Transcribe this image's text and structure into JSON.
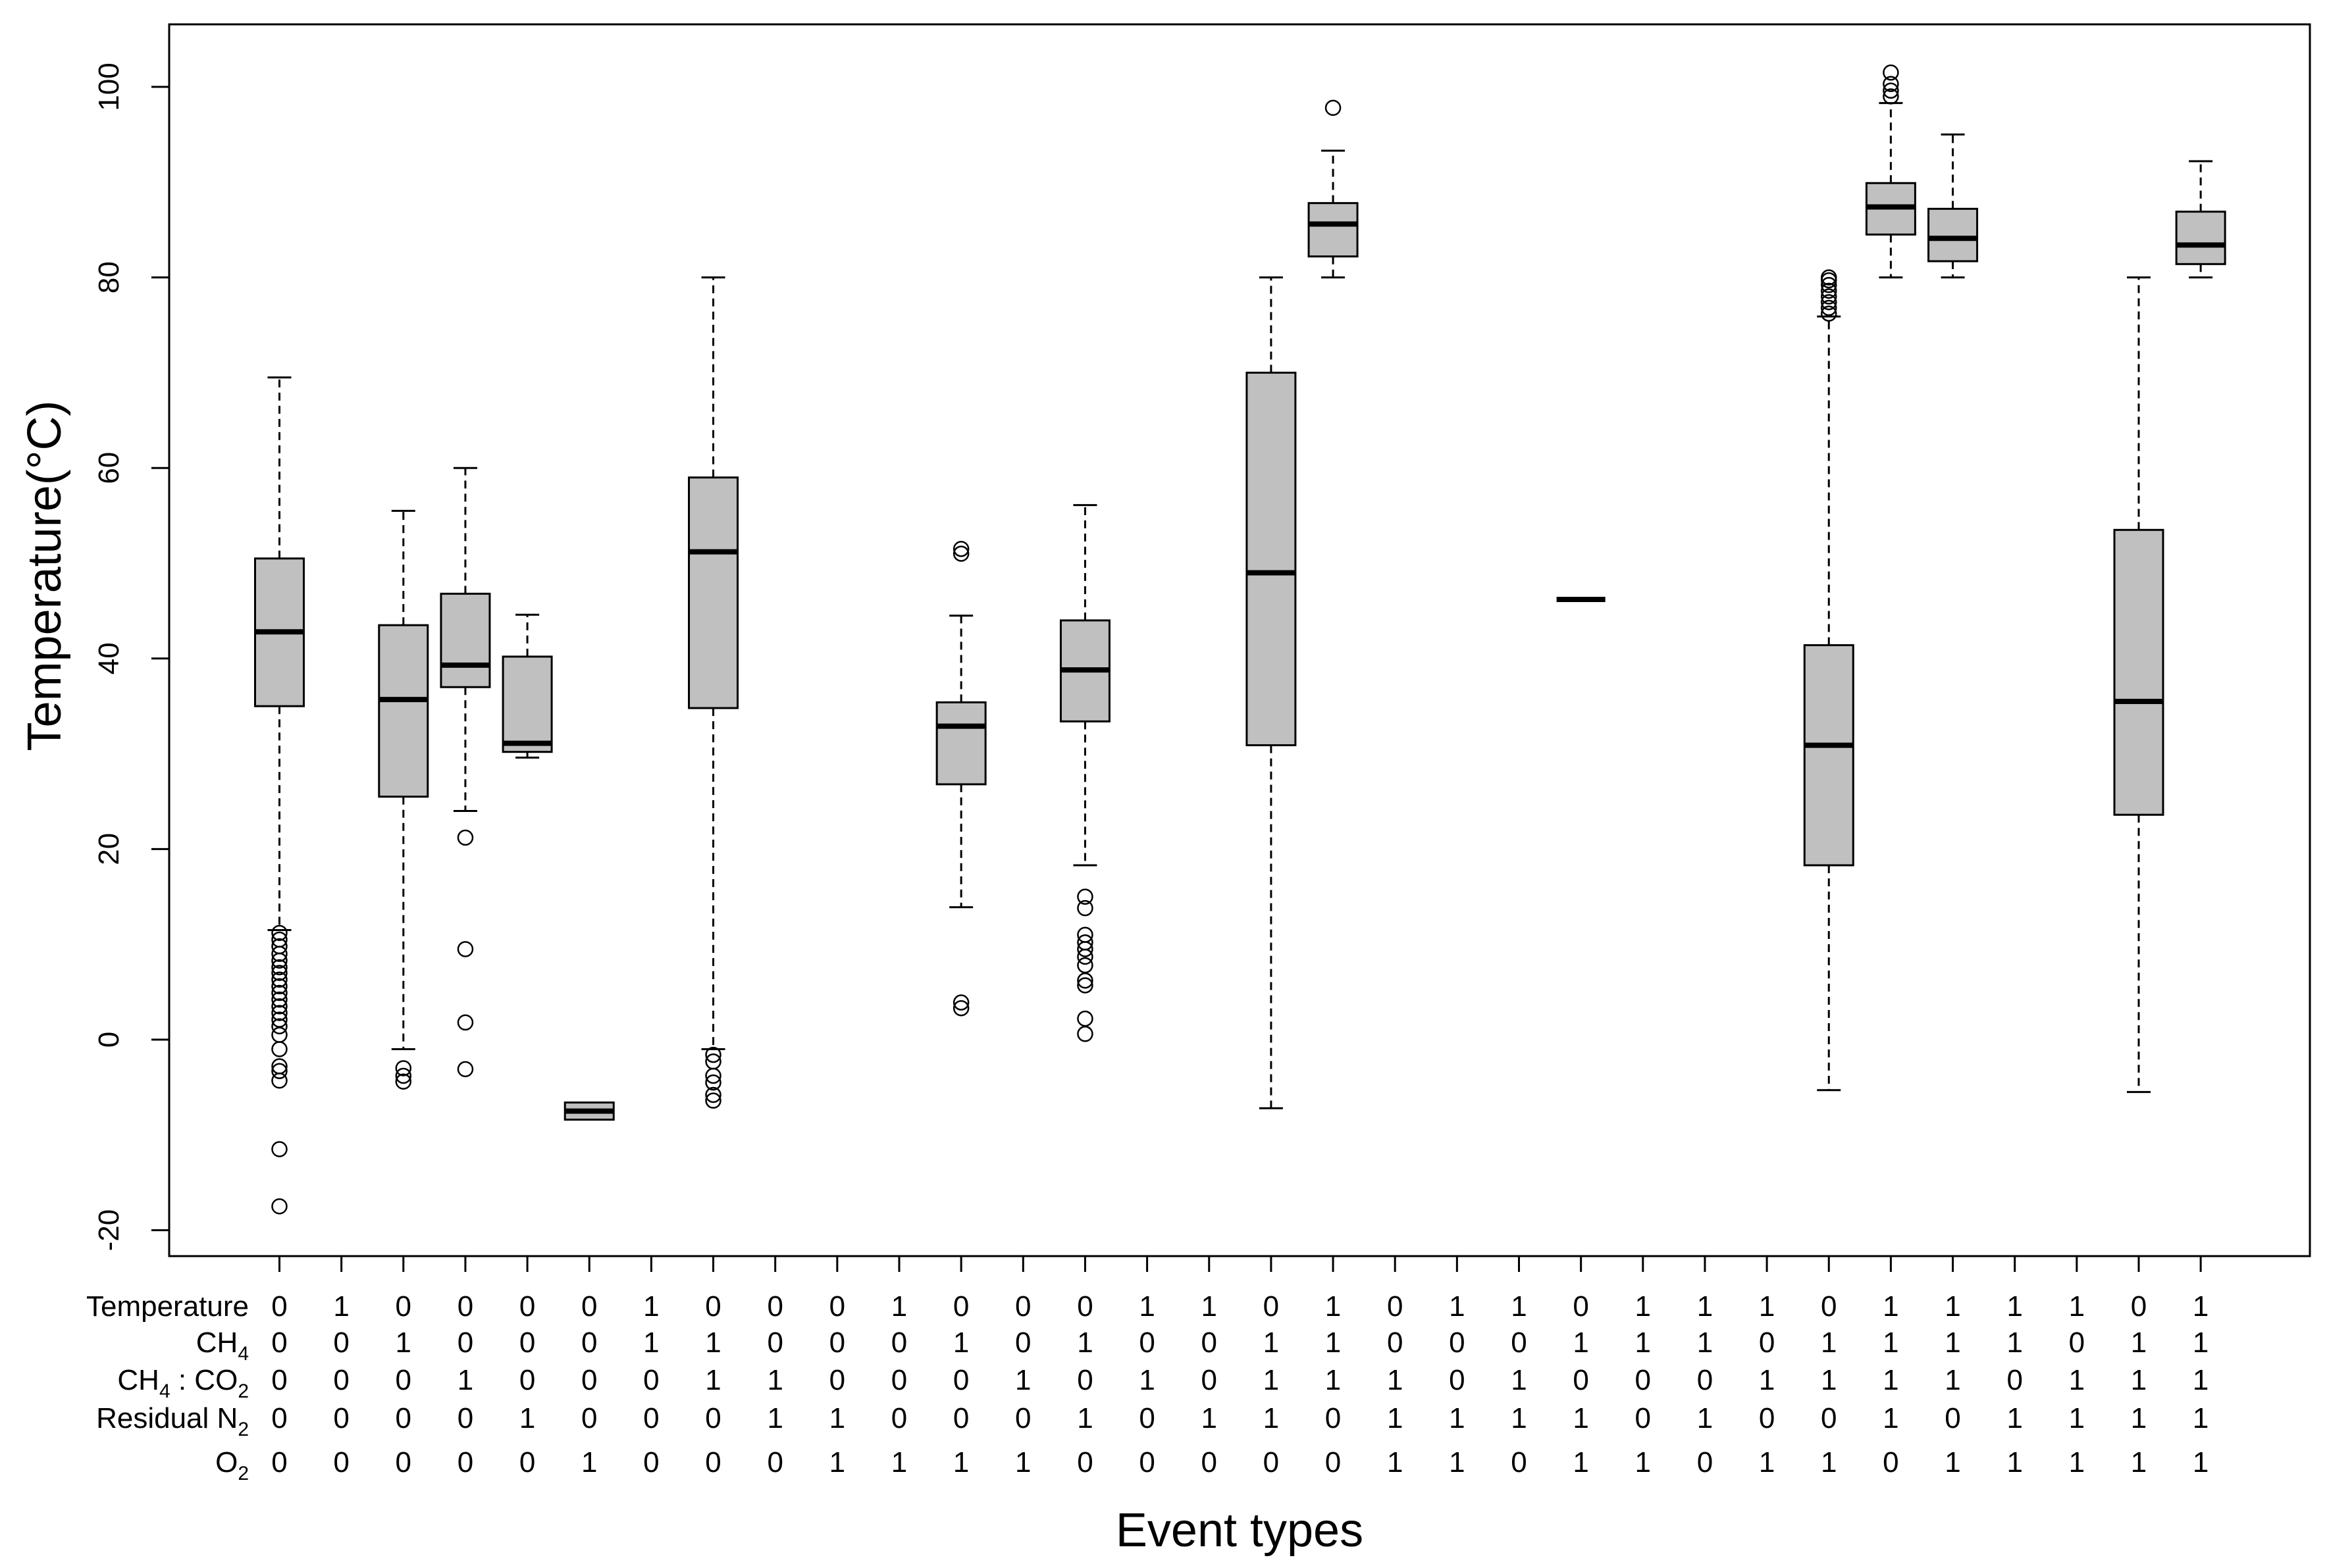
{
  "chart_data": {
    "type": "boxplot",
    "ylabel": "Temperature(°C)",
    "xlabel": "Event types",
    "ylim": [
      -22,
      106
    ],
    "yticks": [
      -20,
      0,
      20,
      40,
      60,
      80,
      100
    ],
    "ytick_labels": [
      "-20",
      "0",
      "20",
      "40",
      "60",
      "80",
      "100"
    ],
    "box_color": "#c0c0c0",
    "row_labels": [
      {
        "key": "temperature",
        "base": "Temperature",
        "sub": ""
      },
      {
        "key": "ch4",
        "base": "CH",
        "sub": "4"
      },
      {
        "key": "ratio",
        "base": "CH",
        "sub": "4",
        "base2": " : CO",
        "sub2": "2"
      },
      {
        "key": "n2",
        "base": "Residual N",
        "sub": "2"
      },
      {
        "key": "o2",
        "base": "O",
        "sub": "2"
      }
    ],
    "event_types": [
      {
        "codes": [
          "0",
          "0",
          "0",
          "0",
          "0"
        ],
        "box": {
          "min": 11.5,
          "q1": 35,
          "median": 42.8,
          "q3": 50.5,
          "max": 69.5,
          "outliers": [
            11.2,
            10.5,
            9.8,
            9.0,
            8.3,
            7.6,
            7.0,
            6.3,
            5.6,
            4.9,
            4.2,
            3.5,
            2.8,
            2.1,
            1.4,
            0.5,
            -1,
            -2.8,
            -3.3,
            -4.3,
            -11.5,
            -17.5
          ]
        }
      },
      {
        "codes": [
          "1",
          "0",
          "0",
          "0",
          "0"
        ],
        "box": null
      },
      {
        "codes": [
          "0",
          "1",
          "0",
          "0",
          "0"
        ],
        "box": {
          "min": -1,
          "q1": 25.5,
          "median": 35.7,
          "q3": 43.5,
          "max": 55.5,
          "outliers": [
            -3,
            -3.8,
            -4.4
          ]
        }
      },
      {
        "codes": [
          "0",
          "0",
          "1",
          "0",
          "0"
        ],
        "box": {
          "min": 24,
          "q1": 37,
          "median": 39.3,
          "q3": 46.8,
          "max": 60,
          "outliers": [
            21.2,
            9.5,
            1.8,
            -3.1
          ]
        }
      },
      {
        "codes": [
          "0",
          "0",
          "0",
          "1",
          "0"
        ],
        "box": {
          "min": 29.6,
          "q1": 30.2,
          "median": 31.1,
          "q3": 40.2,
          "max": 44.6,
          "outliers": []
        }
      },
      {
        "codes": [
          "0",
          "0",
          "0",
          "0",
          "1"
        ],
        "box": {
          "min": -8.4,
          "q1": -8.4,
          "median": -7.5,
          "q3": -6.6,
          "max": -6.6,
          "outliers": []
        }
      },
      {
        "codes": [
          "1",
          "1",
          "0",
          "0",
          "0"
        ],
        "box": null
      },
      {
        "codes": [
          "0",
          "1",
          "1",
          "0",
          "0"
        ],
        "box": {
          "min": -1,
          "q1": 34.8,
          "median": 51.2,
          "q3": 59,
          "max": 80,
          "outliers": [
            -1.6,
            -2.3,
            -3.8,
            -4.5,
            -5.8,
            -6.4
          ]
        }
      },
      {
        "codes": [
          "0",
          "0",
          "1",
          "1",
          "0"
        ],
        "box": null
      },
      {
        "codes": [
          "0",
          "0",
          "0",
          "1",
          "1"
        ],
        "box": null
      },
      {
        "codes": [
          "1",
          "0",
          "0",
          "0",
          "1"
        ],
        "box": null
      },
      {
        "codes": [
          "0",
          "1",
          "0",
          "0",
          "1"
        ],
        "box": {
          "min": 13.9,
          "q1": 26.8,
          "median": 32.9,
          "q3": 35.4,
          "max": 44.5,
          "outliers": [
            51.5,
            51,
            3.9,
            3.3
          ]
        }
      },
      {
        "codes": [
          "0",
          "0",
          "1",
          "0",
          "1"
        ],
        "box": null
      },
      {
        "codes": [
          "0",
          "1",
          "0",
          "1",
          "0"
        ],
        "box": {
          "min": 18.3,
          "q1": 33.4,
          "median": 38.8,
          "q3": 44,
          "max": 56.1,
          "outliers": [
            15,
            13.8,
            11,
            10.2,
            9.5,
            8.7,
            7.8,
            6.2,
            5.7,
            2.2,
            0.6
          ]
        }
      },
      {
        "codes": [
          "1",
          "0",
          "1",
          "0",
          "0"
        ],
        "box": null
      },
      {
        "codes": [
          "1",
          "0",
          "0",
          "1",
          "0"
        ],
        "box": null
      },
      {
        "codes": [
          "0",
          "1",
          "1",
          "1",
          "0"
        ],
        "box": {
          "min": -7.2,
          "q1": 30.9,
          "median": 49,
          "q3": 70,
          "max": 80,
          "outliers": []
        }
      },
      {
        "codes": [
          "1",
          "1",
          "1",
          "0",
          "0"
        ],
        "box": {
          "min": 80,
          "q1": 82.2,
          "median": 85.6,
          "q3": 87.8,
          "max": 93.3,
          "outliers": [
            97.8
          ]
        }
      },
      {
        "codes": [
          "0",
          "0",
          "1",
          "1",
          "1"
        ],
        "box": null
      },
      {
        "codes": [
          "1",
          "0",
          "0",
          "1",
          "1"
        ],
        "box": null
      },
      {
        "codes": [
          "1",
          "0",
          "1",
          "1",
          "0"
        ],
        "box": null
      },
      {
        "codes": [
          "0",
          "1",
          "0",
          "1",
          "1"
        ],
        "box": {
          "min": 46.2,
          "q1": 46.2,
          "median": 46.2,
          "q3": 46.2,
          "max": 46.2,
          "outliers": []
        }
      },
      {
        "codes": [
          "1",
          "1",
          "0",
          "0",
          "1"
        ],
        "box": null
      },
      {
        "codes": [
          "1",
          "1",
          "0",
          "1",
          "0"
        ],
        "box": null
      },
      {
        "codes": [
          "1",
          "0",
          "1",
          "0",
          "1"
        ],
        "box": null
      },
      {
        "codes": [
          "0",
          "1",
          "1",
          "0",
          "1"
        ],
        "box": {
          "min": -5.3,
          "q1": 18.3,
          "median": 30.9,
          "q3": 41.4,
          "max": 75.9,
          "outliers": [
            76.2,
            76.8,
            77.4,
            78,
            78.6,
            79.2,
            79.7,
            80
          ]
        }
      },
      {
        "codes": [
          "1",
          "1",
          "1",
          "1",
          "0"
        ],
        "box": {
          "min": 80,
          "q1": 84.5,
          "median": 87.4,
          "q3": 89.9,
          "max": 98.3,
          "outliers": [
            99,
            99.6,
            100.3,
            101.5
          ]
        }
      },
      {
        "codes": [
          "1",
          "1",
          "1",
          "0",
          "1"
        ],
        "box": {
          "min": 80,
          "q1": 81.7,
          "median": 84.1,
          "q3": 87.2,
          "max": 95,
          "outliers": []
        }
      },
      {
        "codes": [
          "1",
          "1",
          "0",
          "1",
          "1"
        ],
        "box": null
      },
      {
        "codes": [
          "1",
          "0",
          "1",
          "1",
          "1"
        ],
        "box": null
      },
      {
        "codes": [
          "0",
          "1",
          "1",
          "1",
          "1"
        ],
        "box": {
          "min": -5.5,
          "q1": 23.6,
          "median": 35.5,
          "q3": 53.5,
          "max": 80,
          "outliers": []
        }
      },
      {
        "codes": [
          "1",
          "1",
          "1",
          "1",
          "1"
        ],
        "box": {
          "min": 80,
          "q1": 81.4,
          "median": 83.4,
          "q3": 86.9,
          "max": 92.2,
          "outliers": []
        }
      }
    ]
  }
}
